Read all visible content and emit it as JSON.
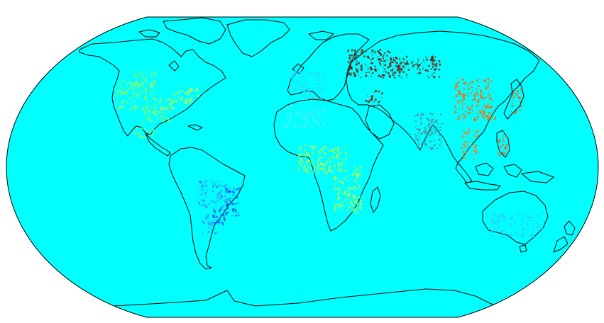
{
  "map": {
    "projection": "robinson",
    "colors": {
      "ocean": "#00ffff",
      "coastline": "#000000",
      "frame": "#000000",
      "page_background": "#ffffff"
    },
    "density_layers": [
      {
        "region": "north-america",
        "color": "#9cff5a"
      },
      {
        "region": "eastern-usa",
        "color": "#e6ff2a"
      },
      {
        "region": "mexico",
        "color": "#8cff66"
      },
      {
        "region": "south-america",
        "color": "#3c8cff"
      },
      {
        "region": "brazil-coast",
        "color": "#1f3cff"
      },
      {
        "region": "western-europe",
        "color": "#2fd4ff"
      },
      {
        "region": "north-africa",
        "color": "#55e8ff"
      },
      {
        "region": "sub-saharan-africa",
        "color": "#c8ff3c"
      },
      {
        "region": "russia",
        "color": "#7a1400"
      },
      {
        "region": "middle-east",
        "color": "#8c1a00"
      },
      {
        "region": "india",
        "color": "#5a8ca0"
      },
      {
        "region": "china",
        "color": "#ff6a00"
      },
      {
        "region": "japan",
        "color": "#ff5a00"
      },
      {
        "region": "philippines",
        "color": "#ff5500"
      },
      {
        "region": "southeast-asia",
        "color": "#ff7a1a"
      },
      {
        "region": "australia",
        "color": "#2ad0ff"
      }
    ]
  }
}
